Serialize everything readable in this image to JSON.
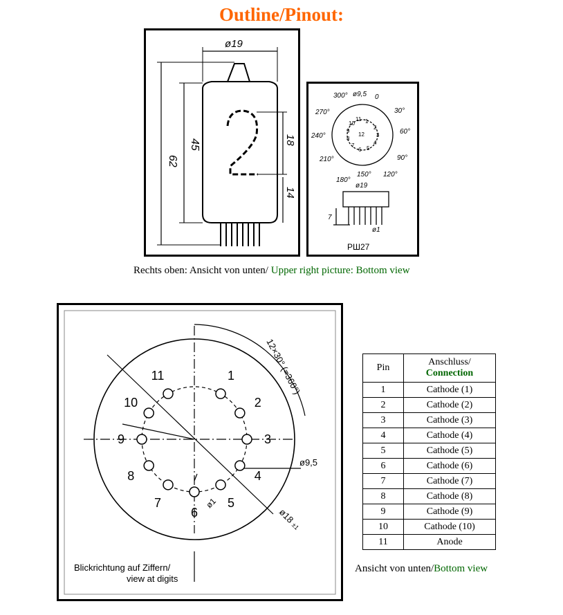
{
  "page": {
    "title": "Outline/Pinout:"
  },
  "outline_drawing": {
    "dia_label": "ø19",
    "height_total": "62",
    "height_glass": "45",
    "digit_height": "18",
    "digit_offset": "14",
    "digit": "2"
  },
  "base_drawing": {
    "angles": [
      "0",
      "30°",
      "60°",
      "90°",
      "120°",
      "150°",
      "180°",
      "210°",
      "240°",
      "270°",
      "300°"
    ],
    "pin_circle": "ø9,5",
    "pin_numbers": [
      "1",
      "2",
      "3",
      "4",
      "5",
      "6",
      "7",
      "8",
      "9",
      "10",
      "11",
      "12"
    ],
    "dia_label": "ø19",
    "pin_length": "7",
    "pin_dia": "ø1",
    "base_type": "РШ27"
  },
  "caption_top": {
    "german": "Rechts oben: Ansicht von unten/ ",
    "english": "Upper right picture: Bottom view"
  },
  "pinout_diagram": {
    "pins": [
      "1",
      "2",
      "3",
      "4",
      "5",
      "6",
      "7",
      "8",
      "9",
      "10",
      "11"
    ],
    "angle_label": "12×30° (=360°)",
    "pin_circle_label": "ø9,5",
    "outer_dia_label": "ø18",
    "outer_dia_tol": "±1",
    "pin_dia_label": "ø1",
    "view_label_de": "Blickrichtung auf Ziffern/",
    "view_label_en": "view at digits"
  },
  "pin_table": {
    "header_pin": "Pin",
    "header_connection_de": "Anschluss/",
    "header_connection_en": "Connection",
    "rows": [
      {
        "pin": "1",
        "connection": "Cathode (1)"
      },
      {
        "pin": "2",
        "connection": "Cathode (2)"
      },
      {
        "pin": "3",
        "connection": "Cathode (3)"
      },
      {
        "pin": "4",
        "connection": "Cathode (4)"
      },
      {
        "pin": "5",
        "connection": "Cathode (5)"
      },
      {
        "pin": "6",
        "connection": "Cathode (6)"
      },
      {
        "pin": "7",
        "connection": "Cathode (7)"
      },
      {
        "pin": "8",
        "connection": "Cathode (8)"
      },
      {
        "pin": "9",
        "connection": "Cathode (9)"
      },
      {
        "pin": "10",
        "connection": "Cathode (10)"
      },
      {
        "pin": "11",
        "connection": "Anode"
      }
    ]
  },
  "caption_bottom": {
    "german": "Ansicht von unten/",
    "english": "Bottom view"
  },
  "colors": {
    "title": "#ff6600",
    "green_text": "#006600"
  }
}
